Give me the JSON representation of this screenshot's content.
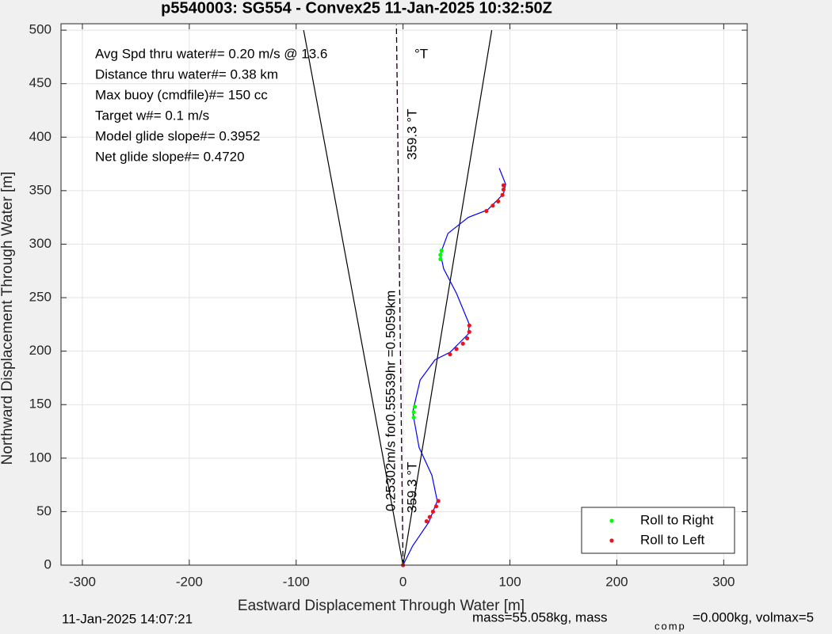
{
  "chart_data": {
    "type": "line",
    "title": "p5540003: SG554 - Convex25 11-Jan-2025 10:32:50Z",
    "xlabel": "Eastward Displacement Through Water [m]",
    "ylabel": "Northward Displacement Through Water [m]",
    "xlim": [
      -320,
      322
    ],
    "ylim": [
      0,
      506
    ],
    "xticks": [
      -300,
      -200,
      -100,
      0,
      100,
      200,
      300
    ],
    "yticks": [
      0,
      50,
      100,
      150,
      200,
      250,
      300,
      350,
      400,
      450,
      500
    ],
    "grid": true,
    "legend_position": "southeast",
    "annotations": [
      "Avg Spd thru water#=  0.20 m/s @  13.6",
      "°T",
      "Distance thru water#=  0.38 km",
      "Max buoy (cmdfile)#= 150 cc",
      "Target w#= 0.1 m/s",
      "Model glide slope#= 0.3952",
      "Net glide slope#= 0.4720",
      "359.3 °T",
      "359.3 °T",
      "0.25302m/s for0.55539hr =0.5059km"
    ],
    "series": [
      {
        "color": "#000000",
        "style": "solid",
        "x": [
          0,
          -93
        ],
        "values": [
          0,
          500
        ]
      },
      {
        "color": "#000000",
        "style": "solid",
        "x": [
          0,
          83
        ],
        "values": [
          0,
          500
        ]
      },
      {
        "color": "#ff00ff",
        "style": "dashed",
        "x": [
          0,
          -6.2
        ],
        "values": [
          0,
          505
        ]
      },
      {
        "color": "#000000",
        "style": "dashed",
        "x": [
          0,
          -6.2
        ],
        "values": [
          0,
          505
        ]
      },
      {
        "color": "#0000ff",
        "style": "solid",
        "x": [
          0,
          9,
          24,
          32,
          27,
          15,
          9,
          16,
          30,
          44,
          61,
          62,
          50,
          38,
          35,
          42,
          61,
          79,
          94,
          96,
          90
        ],
        "values": [
          0,
          18,
          40,
          60,
          84,
          110,
          143,
          173,
          192,
          199,
          216,
          225,
          254,
          277,
          291,
          310,
          325,
          332,
          347,
          356,
          371
        ]
      },
      {
        "name": "Roll to Right",
        "color": "#00ff00",
        "style": "markers",
        "x": [
          10,
          10,
          11,
          35,
          35,
          36
        ],
        "values": [
          138,
          143,
          148,
          286,
          290,
          294
        ]
      },
      {
        "name": "Roll to Left",
        "color": "#e8141e",
        "style": "markers",
        "x": [
          0,
          22,
          25,
          28,
          31,
          33,
          44,
          50,
          56,
          60,
          62,
          62,
          78,
          84,
          89,
          93,
          94,
          94
        ],
        "values": [
          0,
          41,
          45,
          50,
          55,
          60,
          197,
          202,
          207,
          212,
          218,
          224,
          331,
          336,
          340,
          346,
          351,
          355
        ]
      }
    ]
  },
  "footer": {
    "timestamp": "11-Jan-2025 14:07:21",
    "mass": "mass=55.058kg, mass",
    "mass_subscript": "comp",
    "rest": "=0.000kg, volmax=5"
  }
}
